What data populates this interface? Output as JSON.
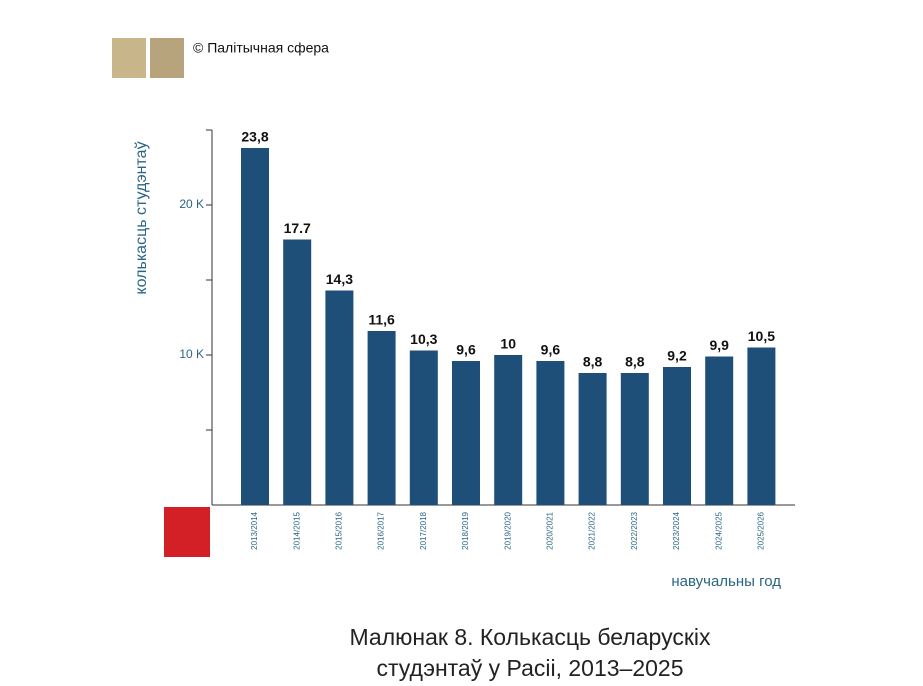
{
  "chart_data": {
    "type": "bar",
    "source": "© Палітычная сфера",
    "y_label": "колькасць студэнтаў",
    "x_label": "навучальны год",
    "caption": [
      "Малюнак 8. Колькасць беларускіх",
      "студэнтаў у Расіі, 2013–2025"
    ],
    "categories": [
      "2013/2014",
      "2014/2015",
      "2015/2016",
      "2016/2017",
      "2017/2018",
      "2018/2019",
      "2019/2020",
      "2020/2021",
      "2021/2022",
      "2022/2023",
      "2023/2024",
      "2024/2025",
      "2025/2026"
    ],
    "values": [
      23.8,
      17.7,
      14.3,
      11.6,
      10.3,
      9.6,
      10,
      9.6,
      8.8,
      8.8,
      9.2,
      9.9,
      10.5
    ],
    "value_labels": [
      "23,8",
      "17.7",
      "14,3",
      "11,6",
      "10,3",
      "9,6",
      "10",
      "9,6",
      "8,8",
      "8,8",
      "9,2",
      "9,9",
      "10,5"
    ],
    "color": "#1e4f78",
    "ylim": [
      0,
      25
    ],
    "yticks": [
      {
        "value": 10,
        "label": "10 K"
      },
      {
        "value": 20,
        "label": "20 K"
      }
    ],
    "yminor_ticks": [
      5,
      15,
      25
    ]
  }
}
